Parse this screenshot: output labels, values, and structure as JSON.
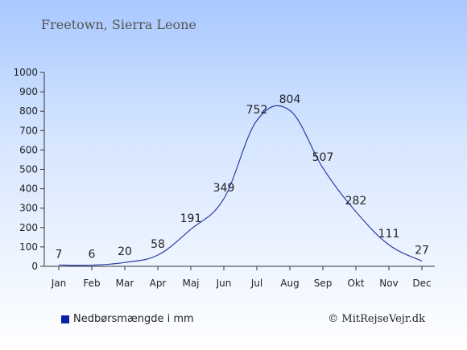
{
  "title": "Freetown, Sierra Leone",
  "legend_label": "Nedbørsmængde i mm",
  "copyright": "© MitRejseVejr.dk",
  "colors": {
    "line": "#2b3da8",
    "swatch": "#0a1fa8",
    "axis": "#333333"
  },
  "chart_data": {
    "type": "line",
    "categories": [
      "Jan",
      "Feb",
      "Mar",
      "Apr",
      "Maj",
      "Jun",
      "Jul",
      "Aug",
      "Sep",
      "Okt",
      "Nov",
      "Dec"
    ],
    "series": [
      {
        "name": "Nedbørsmængde i mm",
        "values": [
          7,
          6,
          20,
          58,
          191,
          349,
          752,
          804,
          507,
          282,
          111,
          27
        ]
      }
    ],
    "yticks": [
      0,
      100,
      200,
      300,
      400,
      500,
      600,
      700,
      800,
      900,
      1000
    ],
    "ylim": [
      0,
      1000
    ],
    "grid": false,
    "legend_position": "bottom-left"
  }
}
